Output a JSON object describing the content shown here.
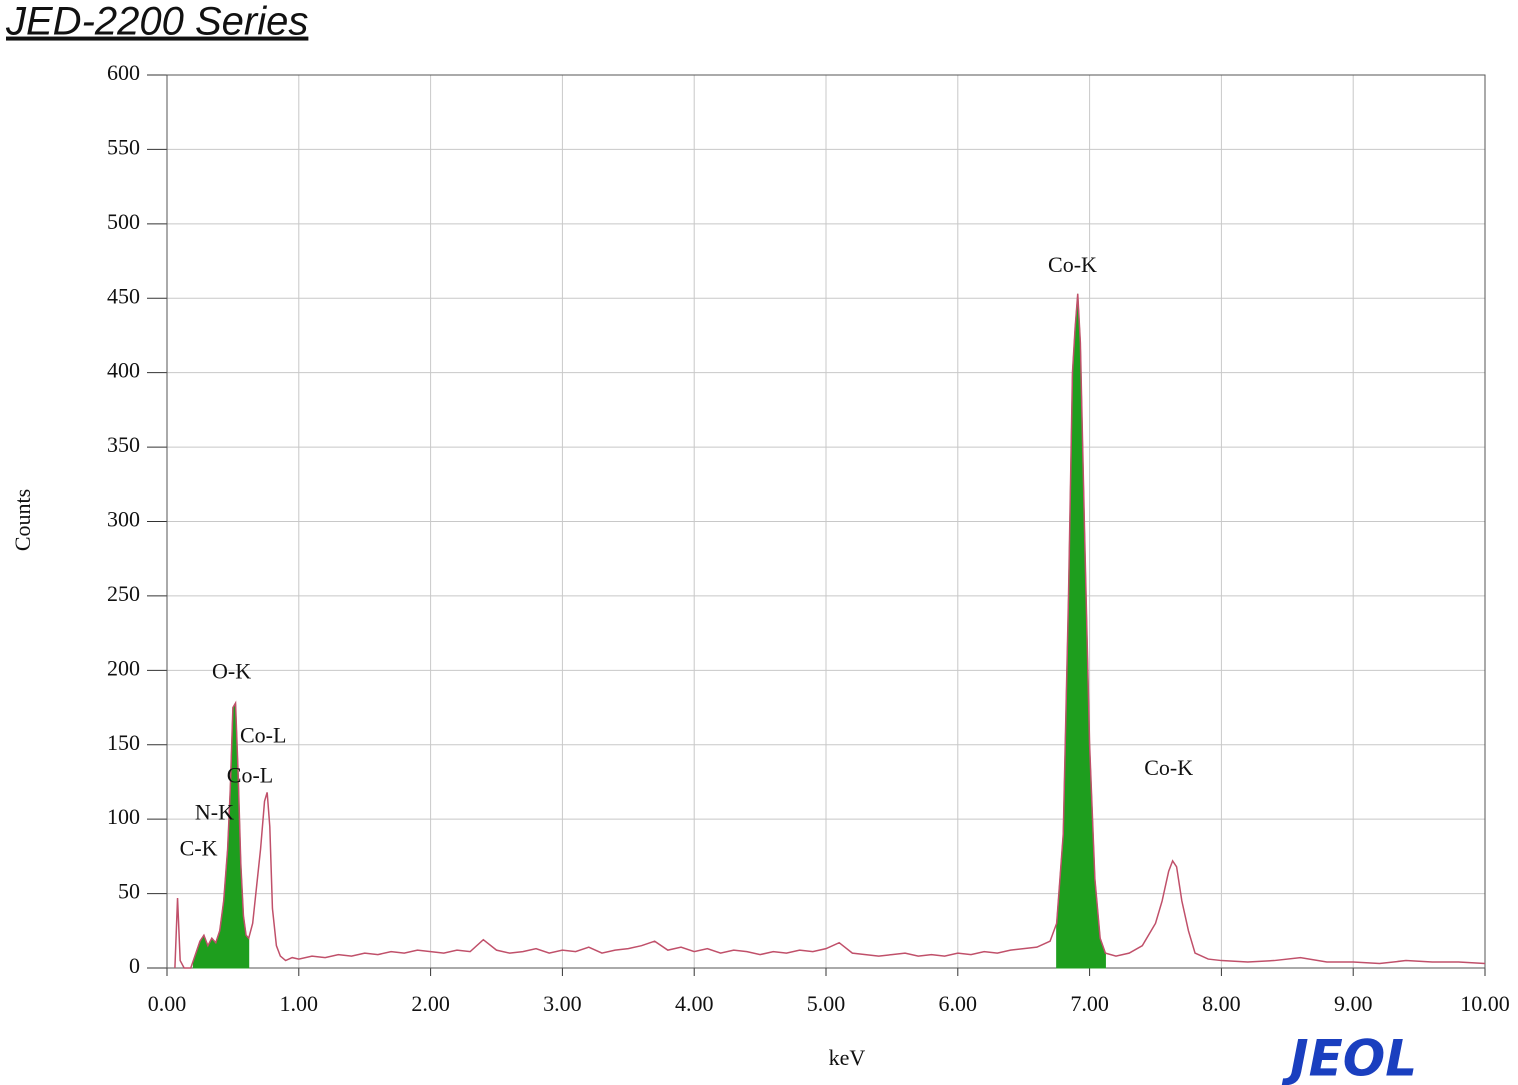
{
  "chart_data": {
    "type": "line",
    "title": "JED-2200 Series",
    "xlabel": "keV",
    "ylabel": "Counts",
    "logo": "JEOL",
    "grid": true,
    "xlim": [
      0,
      10
    ],
    "ylim": [
      0,
      600
    ],
    "xticks": [
      {
        "value": 0,
        "label": "0.00"
      },
      {
        "value": 1,
        "label": "1.00"
      },
      {
        "value": 2,
        "label": "2.00"
      },
      {
        "value": 3,
        "label": "3.00"
      },
      {
        "value": 4,
        "label": "4.00"
      },
      {
        "value": 5,
        "label": "5.00"
      },
      {
        "value": 6,
        "label": "6.00"
      },
      {
        "value": 7,
        "label": "7.00"
      },
      {
        "value": 8,
        "label": "8.00"
      },
      {
        "value": 9,
        "label": "9.00"
      },
      {
        "value": 10,
        "label": "10.00"
      }
    ],
    "yticks": [
      0,
      50,
      100,
      150,
      200,
      250,
      300,
      350,
      400,
      450,
      500,
      550,
      600
    ],
    "series": [
      {
        "type": "line",
        "color": "#c0506a",
        "x": [
          0.06,
          0.08,
          0.1,
          0.13,
          0.18,
          0.2,
          0.25,
          0.28,
          0.31,
          0.34,
          0.37,
          0.4,
          0.43,
          0.46,
          0.48,
          0.5,
          0.52,
          0.54,
          0.56,
          0.58,
          0.6,
          0.62,
          0.65,
          0.68,
          0.71,
          0.74,
          0.76,
          0.78,
          0.8,
          0.83,
          0.86,
          0.9,
          0.95,
          1.0,
          1.1,
          1.2,
          1.3,
          1.4,
          1.5,
          1.6,
          1.7,
          1.8,
          1.9,
          2.0,
          2.1,
          2.2,
          2.3,
          2.4,
          2.5,
          2.6,
          2.7,
          2.8,
          2.9,
          3.0,
          3.1,
          3.2,
          3.3,
          3.4,
          3.5,
          3.6,
          3.7,
          3.8,
          3.9,
          4.0,
          4.1,
          4.2,
          4.3,
          4.4,
          4.5,
          4.6,
          4.7,
          4.8,
          4.9,
          5.0,
          5.1,
          5.2,
          5.3,
          5.4,
          5.5,
          5.6,
          5.7,
          5.8,
          5.9,
          6.0,
          6.1,
          6.2,
          6.3,
          6.4,
          6.5,
          6.6,
          6.7,
          6.75,
          6.8,
          6.84,
          6.87,
          6.89,
          6.91,
          6.93,
          6.96,
          7.0,
          7.04,
          7.08,
          7.12,
          7.2,
          7.3,
          7.4,
          7.5,
          7.55,
          7.6,
          7.63,
          7.66,
          7.7,
          7.75,
          7.8,
          7.9,
          8.0,
          8.2,
          8.4,
          8.6,
          8.8,
          9.0,
          9.2,
          9.4,
          9.6,
          9.8,
          10.0
        ],
        "values": [
          0,
          47,
          5,
          0,
          0,
          5,
          18,
          22,
          15,
          20,
          17,
          25,
          45,
          80,
          120,
          175,
          178,
          130,
          70,
          35,
          22,
          20,
          30,
          55,
          80,
          112,
          118,
          95,
          40,
          15,
          8,
          5,
          7,
          6,
          8,
          7,
          9,
          8,
          10,
          9,
          11,
          10,
          12,
          11,
          10,
          12,
          11,
          19,
          12,
          10,
          11,
          13,
          10,
          12,
          11,
          14,
          10,
          12,
          13,
          15,
          18,
          12,
          14,
          11,
          13,
          10,
          12,
          11,
          9,
          11,
          10,
          12,
          11,
          13,
          17,
          10,
          9,
          8,
          9,
          10,
          8,
          9,
          8,
          10,
          9,
          11,
          10,
          12,
          13,
          14,
          18,
          30,
          90,
          250,
          400,
          430,
          453,
          420,
          300,
          150,
          60,
          20,
          10,
          8,
          10,
          15,
          30,
          45,
          65,
          72,
          68,
          45,
          25,
          10,
          6,
          5,
          4,
          5,
          7,
          4,
          4,
          3,
          5,
          4,
          4,
          3
        ]
      },
      {
        "type": "area",
        "color": "#1e9e1e",
        "x": [
          0.2,
          0.25,
          0.28,
          0.31,
          0.34,
          0.37,
          0.4,
          0.43,
          0.46,
          0.48,
          0.5,
          0.52,
          0.54,
          0.56,
          0.58,
          0.6,
          0.62
        ],
        "values": [
          5,
          18,
          22,
          15,
          20,
          17,
          25,
          45,
          80,
          120,
          175,
          178,
          130,
          70,
          35,
          22,
          20
        ]
      },
      {
        "type": "area",
        "color": "#1e9e1e",
        "x": [
          6.75,
          6.8,
          6.84,
          6.87,
          6.89,
          6.91,
          6.93,
          6.96,
          7.0,
          7.04,
          7.08,
          7.12
        ],
        "values": [
          30,
          90,
          250,
          400,
          430,
          453,
          420,
          300,
          150,
          60,
          20,
          10
        ]
      }
    ],
    "annotations": [
      {
        "text": "O-K",
        "x": 0.49,
        "y": 198
      },
      {
        "text": "Co-L",
        "x": 0.73,
        "y": 155
      },
      {
        "text": "Co-L",
        "x": 0.63,
        "y": 128
      },
      {
        "text": "N-K",
        "x": 0.36,
        "y": 103
      },
      {
        "text": "C-K",
        "x": 0.24,
        "y": 79
      },
      {
        "text": "Co-K",
        "x": 6.87,
        "y": 471
      },
      {
        "text": "Co-K",
        "x": 7.6,
        "y": 133
      }
    ]
  }
}
